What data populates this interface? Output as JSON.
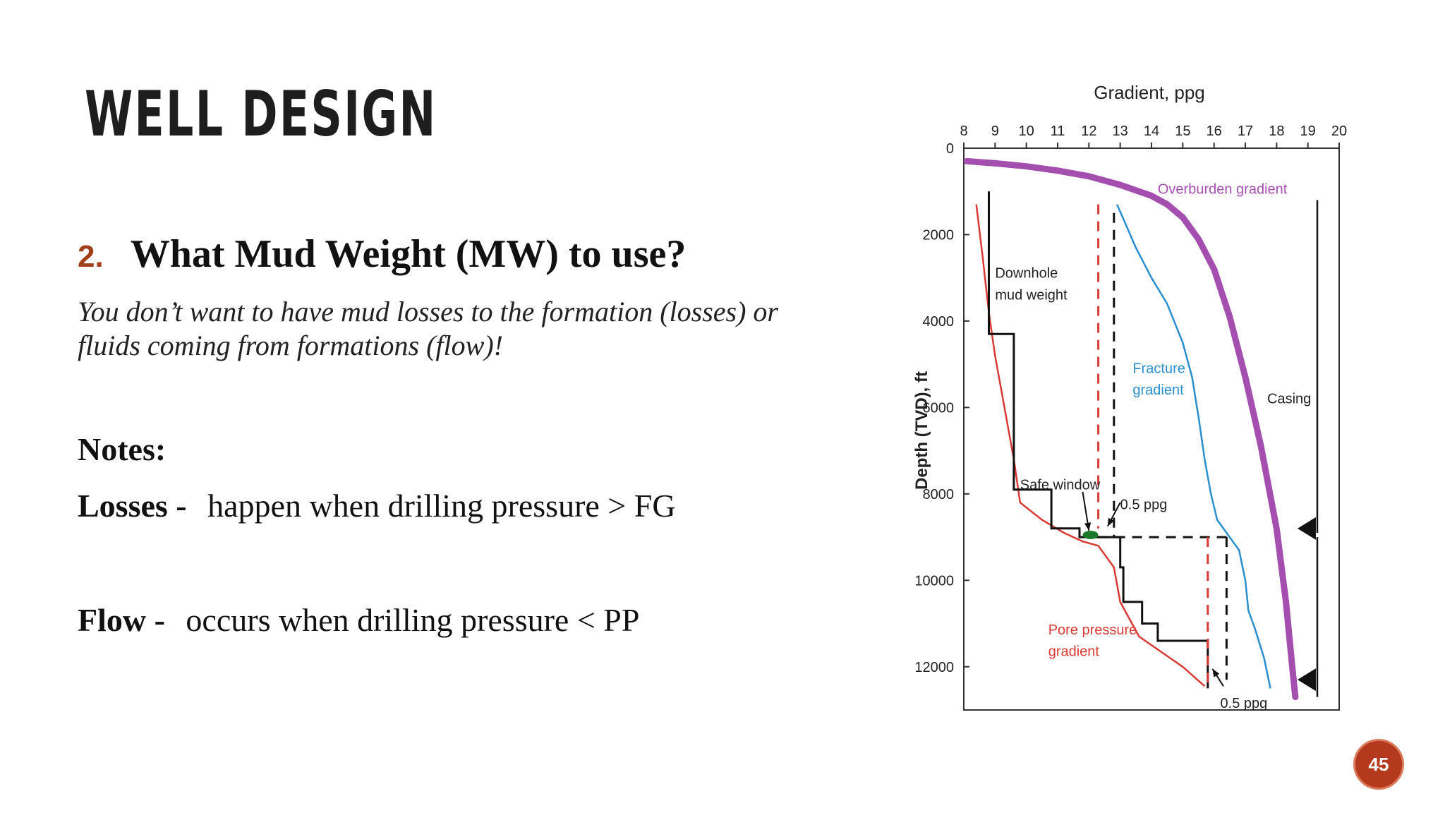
{
  "slide": {
    "title": "WELL DESIGN",
    "question_number": "2.",
    "question": "What Mud Weight (MW) to use?",
    "subtext": "You don’t want to have mud losses to the formation (losses) or fluids coming from formations (flow)!",
    "notes_heading": "Notes:",
    "losses_label": "Losses -",
    "losses_text": "happen when drilling pressure > FG",
    "flow_label": "Flow -",
    "flow_text": "occurs when drilling pressure < PP",
    "page_number": "45"
  },
  "figure": {
    "x_axis_title": "Gradient, ppg",
    "y_axis_title": "Depth (TVD), ft",
    "x_ticks": [
      "8",
      "9",
      "10",
      "11",
      "12",
      "13",
      "14",
      "15",
      "16",
      "17",
      "18",
      "19",
      "20"
    ],
    "y_ticks": [
      "0",
      "2000",
      "4000",
      "6000",
      "8000",
      "10000",
      "12000"
    ],
    "xlim": [
      8,
      20
    ],
    "ylim": [
      0,
      13000
    ],
    "labels": {
      "overburden": "Overburden gradient",
      "downhole_line1": "Downhole",
      "downhole_line2": "mud weight",
      "fracture_line1": "Fracture",
      "fracture_line2": "gradient",
      "casing": "Casing",
      "safe_window": "Safe window",
      "margin_top": "0.5 ppg",
      "pore_line1": "Pore pressure",
      "pore_line2": "gradient",
      "margin_bottom": "0.5 ppg"
    },
    "colors": {
      "overburden": "#a44fb0",
      "fracture": "#2a8fcf",
      "pore": "#d93b34",
      "mud": "#111111",
      "safe_window": "#1b7a2a"
    },
    "series": {
      "overburden": [
        [
          8.1,
          300
        ],
        [
          9,
          350
        ],
        [
          10,
          420
        ],
        [
          11,
          520
        ],
        [
          12,
          650
        ],
        [
          13,
          850
        ],
        [
          14,
          1100
        ],
        [
          14.5,
          1300
        ],
        [
          15,
          1600
        ],
        [
          15.5,
          2100
        ],
        [
          16,
          2800
        ],
        [
          16.5,
          3900
        ],
        [
          17,
          5300
        ],
        [
          17.5,
          6900
        ],
        [
          18,
          8800
        ],
        [
          18.3,
          10500
        ],
        [
          18.5,
          12000
        ],
        [
          18.6,
          12700
        ]
      ],
      "fracture": [
        [
          12.9,
          1300
        ],
        [
          13.5,
          2300
        ],
        [
          14,
          3000
        ],
        [
          14.5,
          3600
        ],
        [
          15,
          4500
        ],
        [
          15.3,
          5300
        ],
        [
          15.5,
          6200
        ],
        [
          15.7,
          7200
        ],
        [
          15.9,
          8000
        ],
        [
          16.1,
          8600
        ],
        [
          16.5,
          9000
        ],
        [
          16.8,
          9300
        ],
        [
          17,
          10000
        ],
        [
          17.1,
          10700
        ],
        [
          17.3,
          11100
        ],
        [
          17.6,
          11800
        ],
        [
          17.8,
          12500
        ]
      ],
      "pore": [
        [
          8.4,
          1300
        ],
        [
          8.6,
          2500
        ],
        [
          8.8,
          3800
        ],
        [
          9.0,
          4800
        ],
        [
          9.3,
          6000
        ],
        [
          9.6,
          7200
        ],
        [
          9.8,
          8200
        ],
        [
          10.5,
          8600
        ],
        [
          11.2,
          8900
        ],
        [
          11.8,
          9100
        ],
        [
          12.3,
          9200
        ],
        [
          12.8,
          9700
        ],
        [
          13.0,
          10500
        ],
        [
          13.3,
          10900
        ],
        [
          13.6,
          11300
        ],
        [
          14.2,
          11600
        ],
        [
          15,
          12000
        ],
        [
          15.7,
          12450
        ]
      ],
      "mud": [
        [
          8.8,
          1000
        ],
        [
          8.8,
          4300
        ],
        [
          9.6,
          4300
        ],
        [
          9.6,
          7900
        ],
        [
          10.8,
          7900
        ],
        [
          10.8,
          8800
        ],
        [
          11.7,
          8800
        ],
        [
          11.7,
          9000
        ],
        [
          12.4,
          9000
        ],
        [
          12.4,
          9000
        ],
        [
          13.0,
          9000
        ],
        [
          13.0,
          9700
        ],
        [
          13.1,
          9700
        ],
        [
          13.1,
          10500
        ],
        [
          13.7,
          10500
        ],
        [
          13.7,
          11000
        ],
        [
          14.2,
          11000
        ],
        [
          14.2,
          11400
        ],
        [
          15.8,
          11400
        ],
        [
          15.8,
          12500
        ]
      ],
      "red_dash_1": [
        [
          12.3,
          1300
        ],
        [
          12.3,
          8800
        ]
      ],
      "black_dash_1": [
        [
          12.8,
          1500
        ],
        [
          12.8,
          9000
        ]
      ],
      "horizontal_dash": [
        [
          12.3,
          9000
        ],
        [
          16.5,
          9000
        ]
      ],
      "red_dash_2": [
        [
          15.8,
          9000
        ],
        [
          15.8,
          12400
        ]
      ],
      "black_dash_2": [
        [
          16.4,
          9000
        ],
        [
          16.4,
          12300
        ]
      ],
      "casing_1": [
        [
          19.3,
          1200
        ],
        [
          19.3,
          8900
        ]
      ],
      "casing_2": [
        [
          19.3,
          9000
        ],
        [
          19.3,
          12700
        ]
      ],
      "casing_shoes": [
        [
          19.3,
          8800
        ],
        [
          19.3,
          12300
        ]
      ]
    }
  }
}
